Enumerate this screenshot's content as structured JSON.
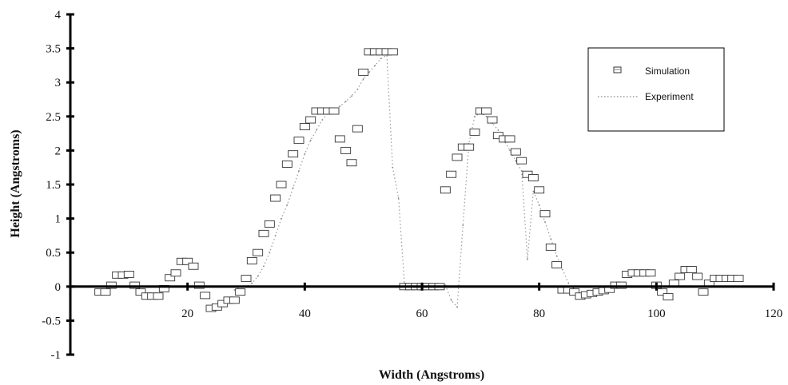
{
  "chart_data": {
    "type": "scatter",
    "xlabel": "Width (Angstroms)",
    "ylabel": "Height (Angstroms)",
    "xlim": [
      0,
      120
    ],
    "ylim": [
      -1,
      4
    ],
    "x_ticks": [
      20,
      40,
      60,
      80,
      100,
      120
    ],
    "y_ticks": [
      -1,
      -0.5,
      0,
      0.5,
      1,
      1.5,
      2,
      2.5,
      3,
      3.5,
      4
    ],
    "grid": false,
    "legend_position": "top-right",
    "legend": [
      "Simulation",
      "Experiment"
    ],
    "series": [
      {
        "name": "Simulation",
        "marker": "square",
        "x": [
          5,
          6,
          7,
          8,
          9,
          10,
          11,
          12,
          13,
          14,
          15,
          16,
          17,
          18,
          19,
          20,
          21,
          22,
          23,
          24,
          25,
          26,
          27,
          28,
          29,
          30,
          31,
          32,
          33,
          34,
          35,
          36,
          37,
          38,
          39,
          40,
          41,
          42,
          43,
          44,
          45,
          46,
          47,
          48,
          49,
          50,
          51,
          52,
          53,
          54,
          55,
          57,
          58,
          59,
          60,
          61,
          62,
          63,
          64,
          65,
          66,
          67,
          68,
          69,
          70,
          71,
          72,
          73,
          74,
          75,
          76,
          77,
          78,
          79,
          80,
          81,
          82,
          83,
          84,
          85,
          86,
          87,
          88,
          89,
          90,
          91,
          92,
          93,
          94,
          95,
          96,
          97,
          98,
          99,
          100,
          101,
          102,
          103,
          104,
          105,
          106,
          107,
          108,
          109,
          110,
          111,
          112,
          113,
          114
        ],
        "y": [
          -0.08,
          -0.08,
          0.02,
          0.17,
          0.17,
          0.18,
          0.02,
          -0.08,
          -0.14,
          -0.14,
          -0.14,
          -0.03,
          0.13,
          0.2,
          0.37,
          0.37,
          0.3,
          0.02,
          -0.13,
          -0.32,
          -0.3,
          -0.25,
          -0.2,
          -0.2,
          -0.08,
          0.12,
          0.38,
          0.5,
          0.78,
          0.92,
          1.3,
          1.5,
          1.8,
          1.95,
          2.15,
          2.35,
          2.45,
          2.58,
          2.58,
          2.58,
          2.58,
          2.17,
          2.0,
          1.82,
          2.32,
          3.15,
          3.45,
          3.45,
          3.45,
          3.45,
          3.45,
          0.0,
          0.0,
          0.0,
          0.0,
          0.0,
          0.0,
          0.0,
          1.42,
          1.65,
          1.9,
          2.05,
          2.05,
          2.27,
          2.58,
          2.58,
          2.45,
          2.22,
          2.17,
          2.17,
          1.98,
          1.85,
          1.65,
          1.6,
          1.42,
          1.07,
          0.58,
          0.32,
          -0.05,
          -0.05,
          -0.08,
          -0.14,
          -0.12,
          -0.1,
          -0.08,
          -0.06,
          -0.04,
          0.02,
          0.02,
          0.18,
          0.2,
          0.2,
          0.2,
          0.2,
          0.02,
          -0.08,
          -0.15,
          0.05,
          0.15,
          0.25,
          0.25,
          0.15,
          -0.08,
          0.05,
          0.12,
          0.12,
          0.12,
          0.12,
          0.12
        ]
      },
      {
        "name": "Experiment",
        "marker": "dotted-line",
        "x": [
          28,
          29,
          30,
          31,
          32,
          33,
          34,
          35,
          36,
          37,
          38,
          39,
          40,
          41,
          42,
          43,
          44,
          45,
          46,
          47,
          48,
          49,
          50,
          51,
          52,
          53,
          54,
          55,
          56,
          57,
          58,
          59,
          60,
          61,
          62,
          63,
          64,
          65,
          66,
          67,
          68,
          69,
          70,
          71,
          72,
          73,
          74,
          75,
          76,
          77,
          78,
          79,
          80,
          81,
          82,
          83,
          84,
          85
        ],
        "y": [
          -0.05,
          0.0,
          0.0,
          0.05,
          0.15,
          0.3,
          0.5,
          0.75,
          1.0,
          1.2,
          1.45,
          1.7,
          1.95,
          2.15,
          2.3,
          2.45,
          2.55,
          2.6,
          2.65,
          2.72,
          2.8,
          2.9,
          3.05,
          3.15,
          3.25,
          3.35,
          3.4,
          1.75,
          1.3,
          0.05,
          0.02,
          0.02,
          0.02,
          0.02,
          0.02,
          0.02,
          0.02,
          -0.2,
          -0.3,
          0.9,
          2.1,
          2.5,
          2.55,
          2.5,
          2.4,
          2.3,
          2.15,
          2.0,
          1.85,
          1.7,
          0.4,
          1.4,
          1.2,
          0.95,
          0.7,
          0.45,
          0.25,
          0.05
        ]
      }
    ]
  }
}
